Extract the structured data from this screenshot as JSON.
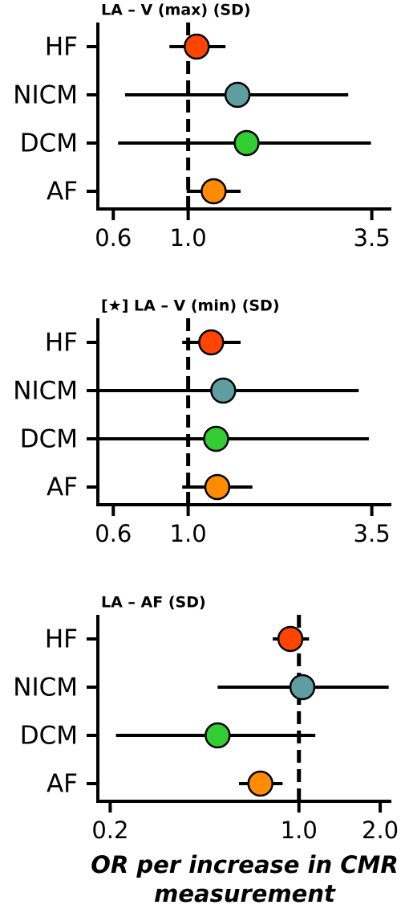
{
  "chart_data": [
    {
      "type": "forest",
      "title": "LA – V (max) (SD)",
      "xscale": "log",
      "categories": [
        "HF",
        "NICM",
        "DCM",
        "AF"
      ],
      "values": [
        1.06,
        1.4,
        1.49,
        1.19
      ],
      "lower": [
        0.88,
        0.65,
        0.62,
        0.99
      ],
      "upper": [
        1.29,
        2.98,
        3.48,
        1.43
      ],
      "colors": [
        "#ff4500",
        "#5f9ea0",
        "#32cd32",
        "#ff8c00"
      ],
      "xlim": [
        0.54,
        4.0
      ],
      "xticks": [
        0.6,
        {
          "value": 1,
          "label": "1.0"
        },
        3.5
      ],
      "reference_line": 1
    },
    {
      "type": "forest",
      "title": "[★] LA – V (min) (SD)",
      "xscale": "log",
      "categories": [
        "HF",
        "NICM",
        "DCM",
        "AF"
      ],
      "values": [
        1.17,
        1.27,
        1.21,
        1.22
      ],
      "lower": [
        0.96,
        0.54,
        0.54,
        0.96
      ],
      "upper": [
        1.43,
        3.2,
        3.43,
        1.55
      ],
      "colors": [
        "#ff4500",
        "#5f9ea0",
        "#32cd32",
        "#ff8c00"
      ],
      "xlim": [
        0.54,
        4.0
      ],
      "xticks": [
        0.6,
        {
          "value": 1,
          "label": "1.0"
        },
        3.5
      ],
      "reference_line": 1
    },
    {
      "type": "forest",
      "title": "LA – AF (SD)",
      "xscale": "log",
      "categories": [
        "HF",
        "NICM",
        "DCM",
        "AF"
      ],
      "values": [
        0.93,
        1.03,
        0.5,
        0.72
      ],
      "lower": [
        0.8,
        0.5,
        0.21,
        0.6
      ],
      "upper": [
        1.09,
        2.15,
        1.15,
        0.87
      ],
      "colors": [
        "#ff4500",
        "#5f9ea0",
        "#32cd32",
        "#ff8c00"
      ],
      "xlim": [
        0.18,
        2.2
      ],
      "xticks": [
        0.2,
        {
          "value": 1,
          "label": "1.0"
        },
        {
          "value": 2,
          "label": "2.0"
        }
      ],
      "reference_line": 1,
      "xlabel": "OR per increase in CMR measurement"
    }
  ]
}
